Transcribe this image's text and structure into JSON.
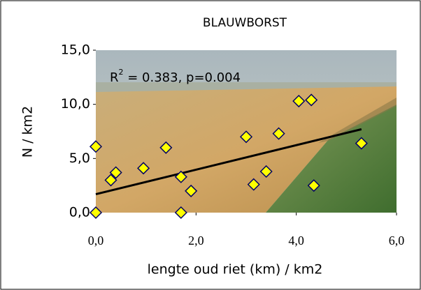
{
  "chart_data": {
    "type": "scatter",
    "title": "BLAUWBORST",
    "x_label": "lengte oud riet (km) / km2",
    "y_label": "N / km2",
    "annotation": {
      "base": "R",
      "sup": "2",
      "rest": " = 0.383, p=0.004"
    },
    "x": [
      0,
      0,
      0.3,
      0.4,
      0.95,
      1.4,
      1.7,
      1.7,
      1.9,
      3.0,
      3.15,
      3.4,
      3.65,
      4.05,
      4.3,
      4.35,
      5.3
    ],
    "values": [
      6.1,
      0,
      3.0,
      3.7,
      4.1,
      6.0,
      3.3,
      0,
      2.0,
      7.0,
      2.6,
      3.8,
      7.3,
      10.3,
      10.4,
      2.5,
      6.4
    ],
    "color": "#ffff00",
    "edge_color": "#000066",
    "trendline": {
      "x": [
        0,
        5.3
      ],
      "values": [
        1.7,
        7.7
      ],
      "color": "#000000"
    },
    "xlim": [
      0,
      6
    ],
    "ylim": [
      0,
      15
    ],
    "xticks": [
      {
        "value": 0,
        "label": "0,0"
      },
      {
        "value": 2,
        "label": "2,0"
      },
      {
        "value": 4,
        "label": "4,0"
      },
      {
        "value": 6,
        "label": "6,0"
      }
    ],
    "yticks": [
      {
        "value": 0,
        "label": "0,0"
      },
      {
        "value": 5,
        "label": "5,0"
      },
      {
        "value": 10,
        "label": "10,0"
      },
      {
        "value": 15,
        "label": "15,0"
      }
    ]
  }
}
